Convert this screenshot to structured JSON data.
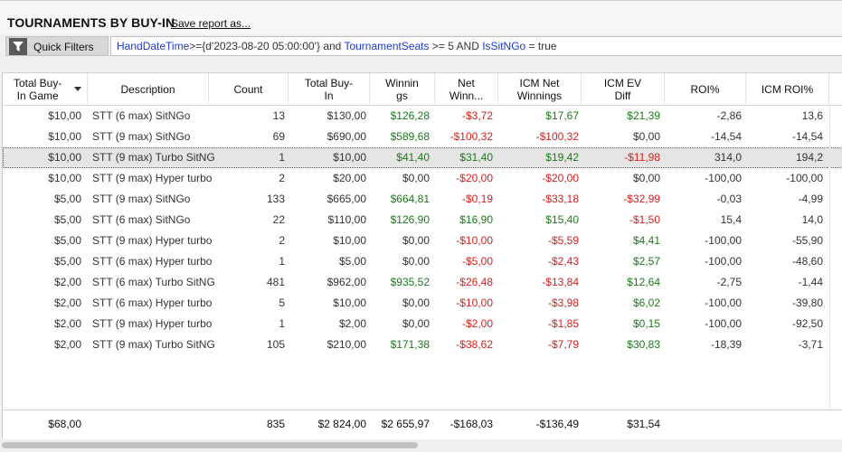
{
  "header": {
    "title": "TOURNAMENTS BY BUY-IN",
    "save_link": "Save report as..."
  },
  "filter": {
    "label": "Quick Filters",
    "parts": [
      {
        "text": "HandDateTime",
        "kind": "kw"
      },
      {
        "text": ">={d'2023-08-20 05:00:00'} and ",
        "kind": "op"
      },
      {
        "text": "TournamentSeats",
        "kind": "kw"
      },
      {
        "text": " >= 5 AND ",
        "kind": "op"
      },
      {
        "text": "IsSitNGo",
        "kind": "kw"
      },
      {
        "text": " = true",
        "kind": "op"
      }
    ]
  },
  "columns": [
    {
      "label": "Total Buy-\nIn Game",
      "sort": "desc"
    },
    {
      "label": "Description"
    },
    {
      "label": "Count"
    },
    {
      "label": "Total Buy-\nIn"
    },
    {
      "label": "Winnin\ngs"
    },
    {
      "label": "Net\nWinn..."
    },
    {
      "label": "ICM Net\nWinnings"
    },
    {
      "label": "ICM EV\nDiff"
    },
    {
      "label": "ROI%"
    },
    {
      "label": "ICM ROI%"
    }
  ],
  "rows": [
    [
      "$10,00",
      "STT (6 max) SitNGo",
      "13",
      "$130,00",
      "$126,28",
      "-$3,72",
      "$17,67",
      "$21,39",
      "-2,86",
      "13,6"
    ],
    [
      "$10,00",
      "STT (9 max) SitNGo",
      "69",
      "$690,00",
      "$589,68",
      "-$100,32",
      "-$100,32",
      "$0,00",
      "-14,54",
      "-14,54"
    ],
    [
      "$10,00",
      "STT (9 max) Turbo SitNG",
      "1",
      "$10,00",
      "$41,40",
      "$31,40",
      "$19,42",
      "-$11,98",
      "314,0",
      "194,2"
    ],
    [
      "$10,00",
      "STT (9 max) Hyper turbo",
      "2",
      "$20,00",
      "$0,00",
      "-$20,00",
      "-$20,00",
      "$0,00",
      "-100,00",
      "-100,00"
    ],
    [
      "$5,00",
      "STT (9 max) SitNGo",
      "133",
      "$665,00",
      "$664,81",
      "-$0,19",
      "-$33,18",
      "-$32,99",
      "-0,03",
      "-4,99"
    ],
    [
      "$5,00",
      "STT (6 max) SitNGo",
      "22",
      "$110,00",
      "$126,90",
      "$16,90",
      "$15,40",
      "-$1,50",
      "15,4",
      "14,0"
    ],
    [
      "$5,00",
      "STT (9 max) Hyper turbo",
      "2",
      "$10,00",
      "$0,00",
      "-$10,00",
      "-$5,59",
      "$4,41",
      "-100,00",
      "-55,90"
    ],
    [
      "$5,00",
      "STT (6 max) Hyper turbo",
      "1",
      "$5,00",
      "$0,00",
      "-$5,00",
      "-$2,43",
      "$2,57",
      "-100,00",
      "-48,60"
    ],
    [
      "$2,00",
      "STT (6 max) Turbo SitNG",
      "481",
      "$962,00",
      "$935,52",
      "-$26,48",
      "-$13,84",
      "$12,64",
      "-2,75",
      "-1,44"
    ],
    [
      "$2,00",
      "STT (6 max) Hyper turbo",
      "5",
      "$10,00",
      "$0,00",
      "-$10,00",
      "-$3,98",
      "$6,02",
      "-100,00",
      "-39,80"
    ],
    [
      "$2,00",
      "STT (9 max) Hyper turbo",
      "1",
      "$2,00",
      "$0,00",
      "-$2,00",
      "-$1,85",
      "$0,15",
      "-100,00",
      "-92,50"
    ],
    [
      "$2,00",
      "STT (9 max) Turbo SitNG",
      "105",
      "$210,00",
      "$171,38",
      "-$38,62",
      "-$7,79",
      "$30,83",
      "-18,39",
      "-3,71"
    ]
  ],
  "selected_row": 2,
  "totals": [
    "$68,00",
    "",
    "835",
    "$2 824,00",
    "$2 655,97",
    "-$168,03",
    "-$136,49",
    "$31,54",
    "",
    ""
  ],
  "colors": {
    "positive": "#1a7a1a",
    "negative": "#d62020",
    "link_keyword": "#1a3ad8",
    "selected_row": "#e5e5e5"
  }
}
